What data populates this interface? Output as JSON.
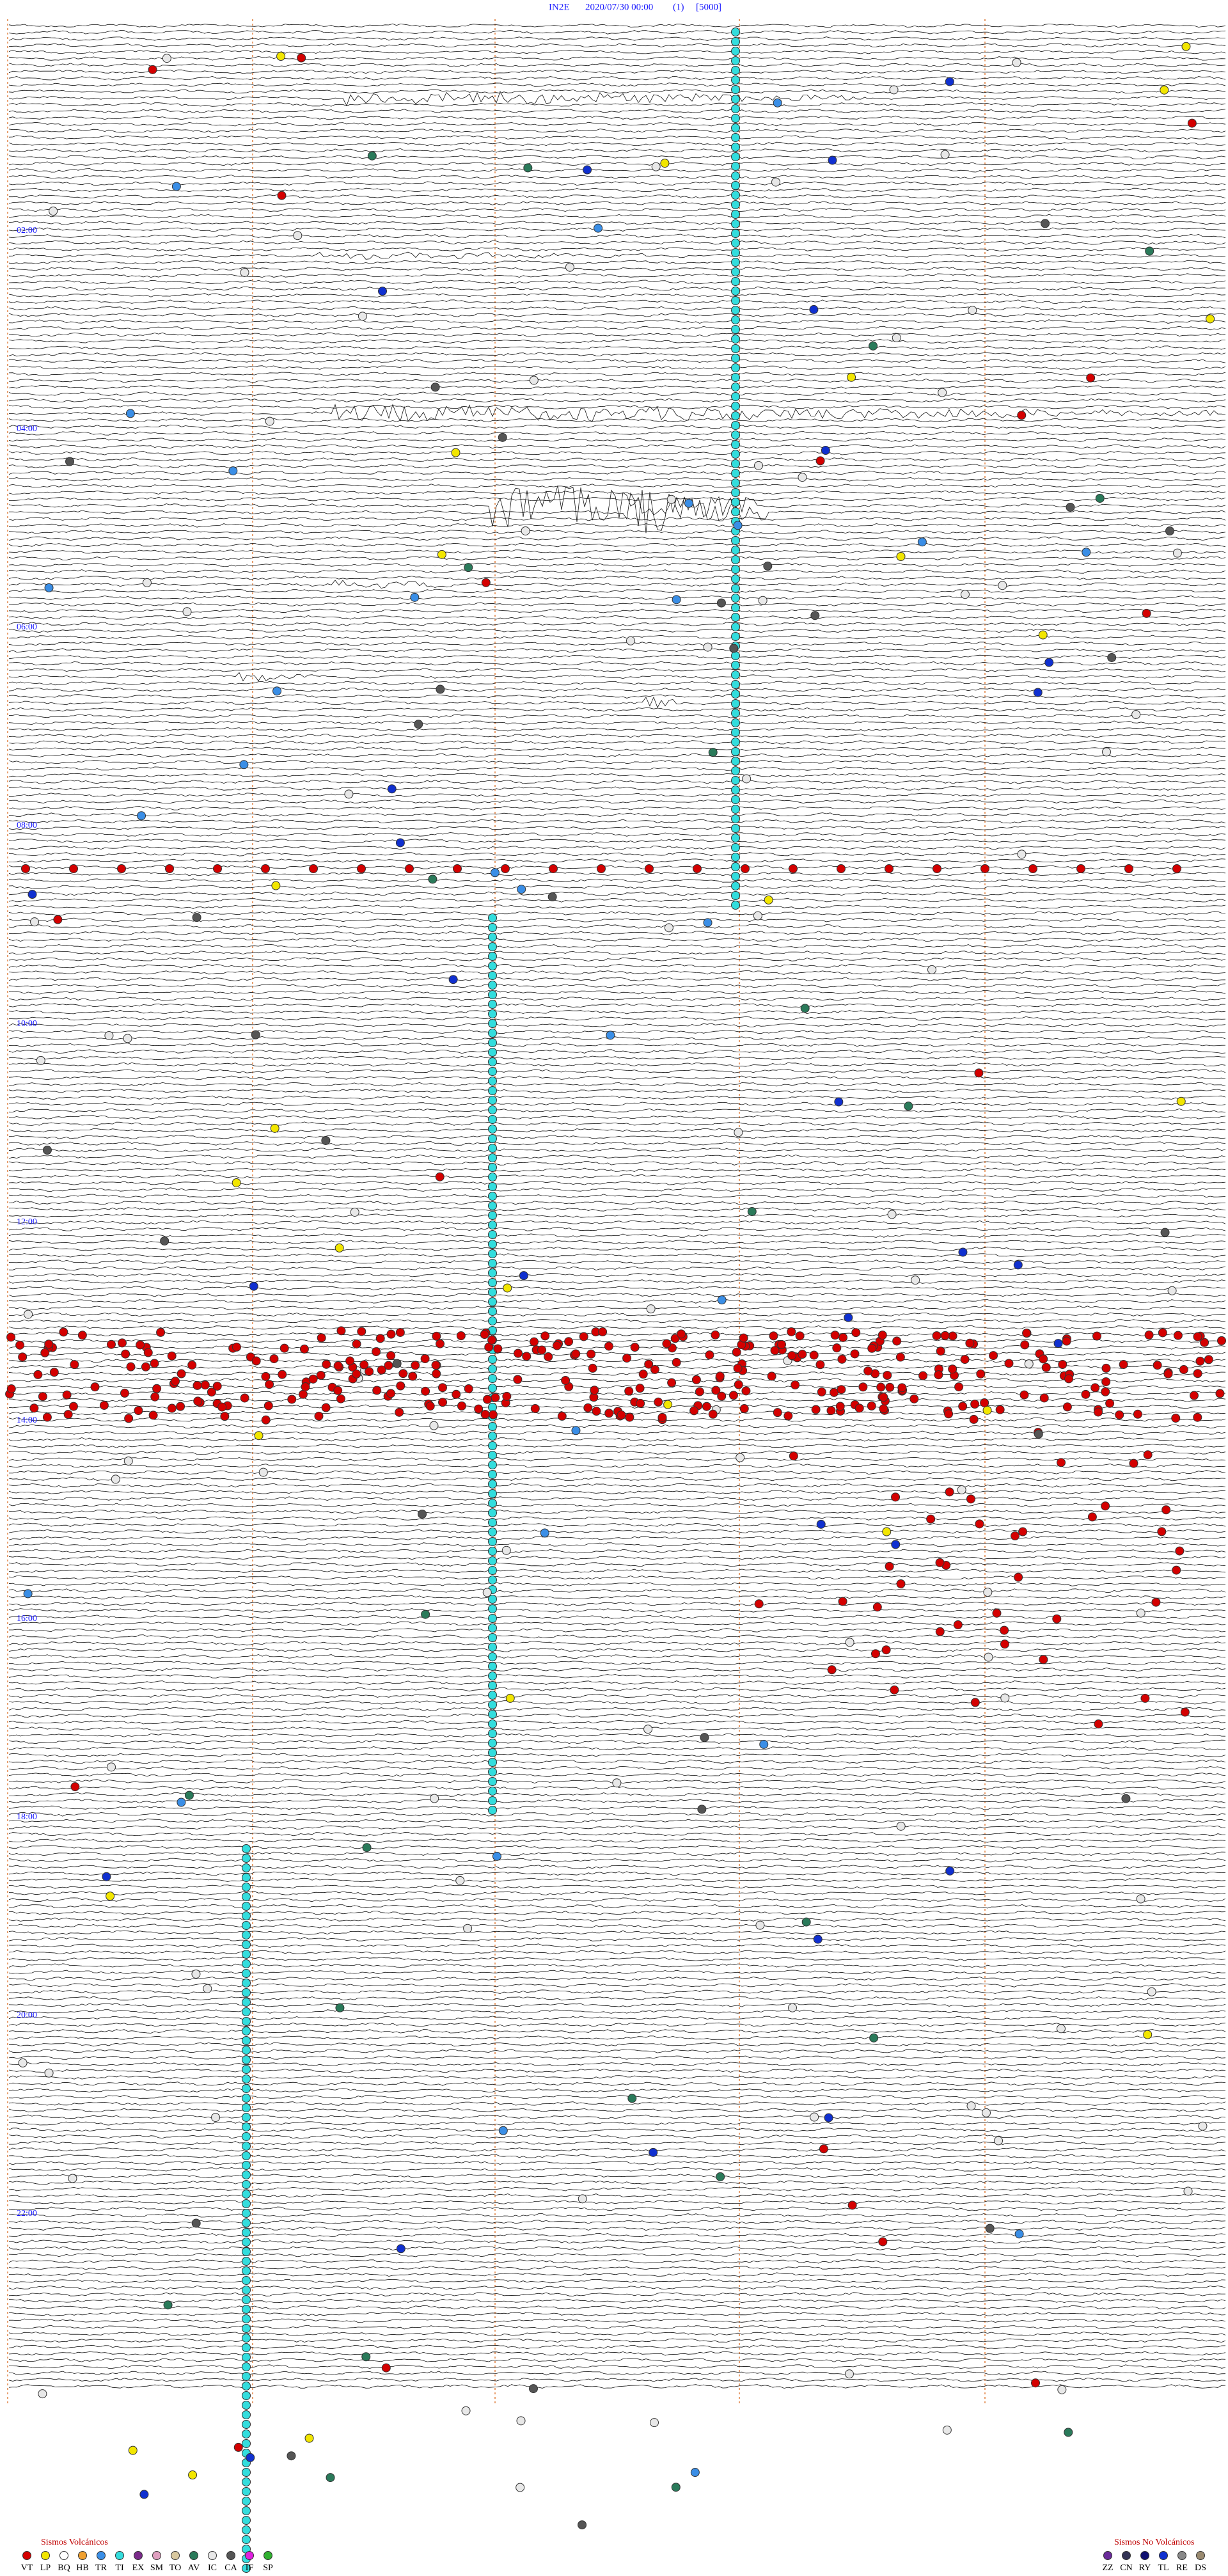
{
  "header": {
    "station": "IN2E",
    "datetime": "2020/07/30 00:00",
    "index": "(1)",
    "scale": "[5000]"
  },
  "hour_labels": [
    "02:00",
    "04:00",
    "06:00",
    "08:00",
    "10:00",
    "12:00",
    "14:00",
    "16:00",
    "18:00",
    "20:00",
    "22:00"
  ],
  "legend": {
    "volcanic_title": "Sismos Volcánicos",
    "volcanic": [
      {
        "code": "VT",
        "color": "#d40000"
      },
      {
        "code": "LP",
        "color": "#f2e600"
      },
      {
        "code": "BQ",
        "color": "#ffffff"
      },
      {
        "code": "HB",
        "color": "#f0a030"
      },
      {
        "code": "TR",
        "color": "#3a8ee6"
      },
      {
        "code": "TI",
        "color": "#33dddd"
      },
      {
        "code": "EX",
        "color": "#7a2a8a"
      },
      {
        "code": "SM",
        "color": "#e0a0c0"
      },
      {
        "code": "TO",
        "color": "#d9c9a0"
      },
      {
        "code": "AV",
        "color": "#2a7a5a"
      },
      {
        "code": "IC",
        "color": "#e8e8e8"
      },
      {
        "code": "CA",
        "color": "#555555"
      },
      {
        "code": "IF",
        "color": "#e020e0"
      },
      {
        "code": "SP",
        "color": "#30b030"
      }
    ],
    "non_volcanic_title": "Sismos No Volcánicos",
    "non_volcanic": [
      {
        "code": "ZZ",
        "color": "#6a2a9a"
      },
      {
        "code": "CN",
        "color": "#333355"
      },
      {
        "code": "RY",
        "color": "#101070"
      },
      {
        "code": "TL",
        "color": "#1030d0"
      },
      {
        "code": "RE",
        "color": "#888888"
      },
      {
        "code": "DS",
        "color": "#9a8a70"
      }
    ]
  }
}
